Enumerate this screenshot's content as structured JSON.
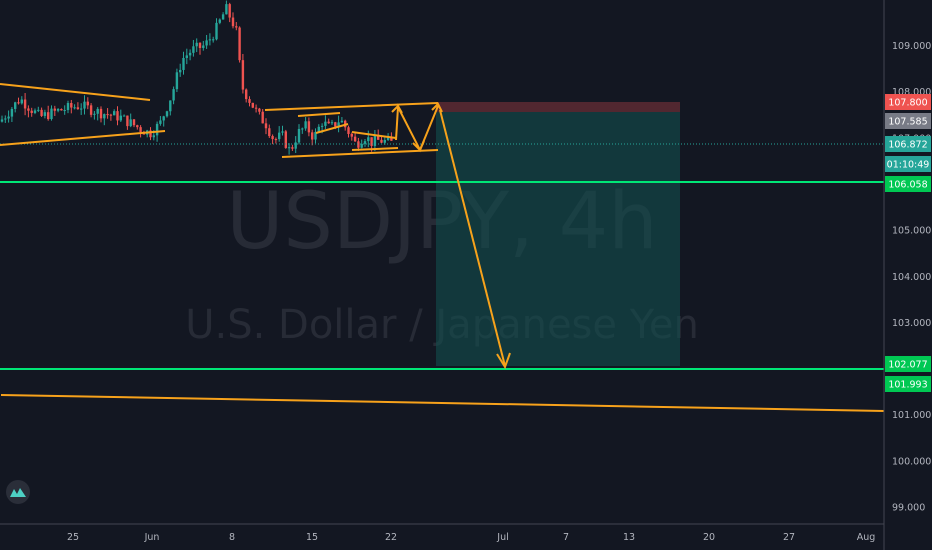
{
  "chart_data": {
    "type": "candlestick",
    "symbol": "USDJPY",
    "interval": "4h",
    "description": "U.S. Dollar / Japanese Yen",
    "y_axis": {
      "ticks": [
        "109.000",
        "108.000",
        "107.000",
        "106.000",
        "105.000",
        "104.000",
        "103.000",
        "102.000",
        "101.000",
        "100.000",
        "99.000"
      ],
      "range": [
        98.9,
        109.55
      ]
    },
    "x_axis": {
      "ticks": [
        "25",
        "Jun",
        "8",
        "15",
        "22",
        "Jul",
        "7",
        "13",
        "20",
        "27",
        "Aug"
      ]
    },
    "price_tags": [
      {
        "label": "107.800",
        "value": 107.8,
        "color": "#ef5350"
      },
      {
        "label": "107.585",
        "value": 107.585,
        "color": "#787b86"
      },
      {
        "label": "106.872",
        "value": 106.872,
        "color": "#26a69a"
      },
      {
        "label": "01:10:49",
        "value": 106.55,
        "color": "#26a69a"
      },
      {
        "label": "106.058",
        "value": 106.058,
        "color": "#00c853"
      },
      {
        "label": "102.077",
        "value": 102.077,
        "color": "#00c853"
      },
      {
        "label": "101.993",
        "value": 101.993,
        "color": "#00c853"
      }
    ],
    "horizontal_levels": [
      {
        "value": 106.0,
        "color": "#00e676"
      },
      {
        "value": 101.93,
        "color": "#00e676"
      }
    ],
    "last_price": 106.872,
    "colors": {
      "up": "#26a69a",
      "down": "#ef5350",
      "drawing": "#f7a21b",
      "background": "#131722"
    }
  },
  "logo": {
    "icon": "tradingview-logo-icon"
  }
}
